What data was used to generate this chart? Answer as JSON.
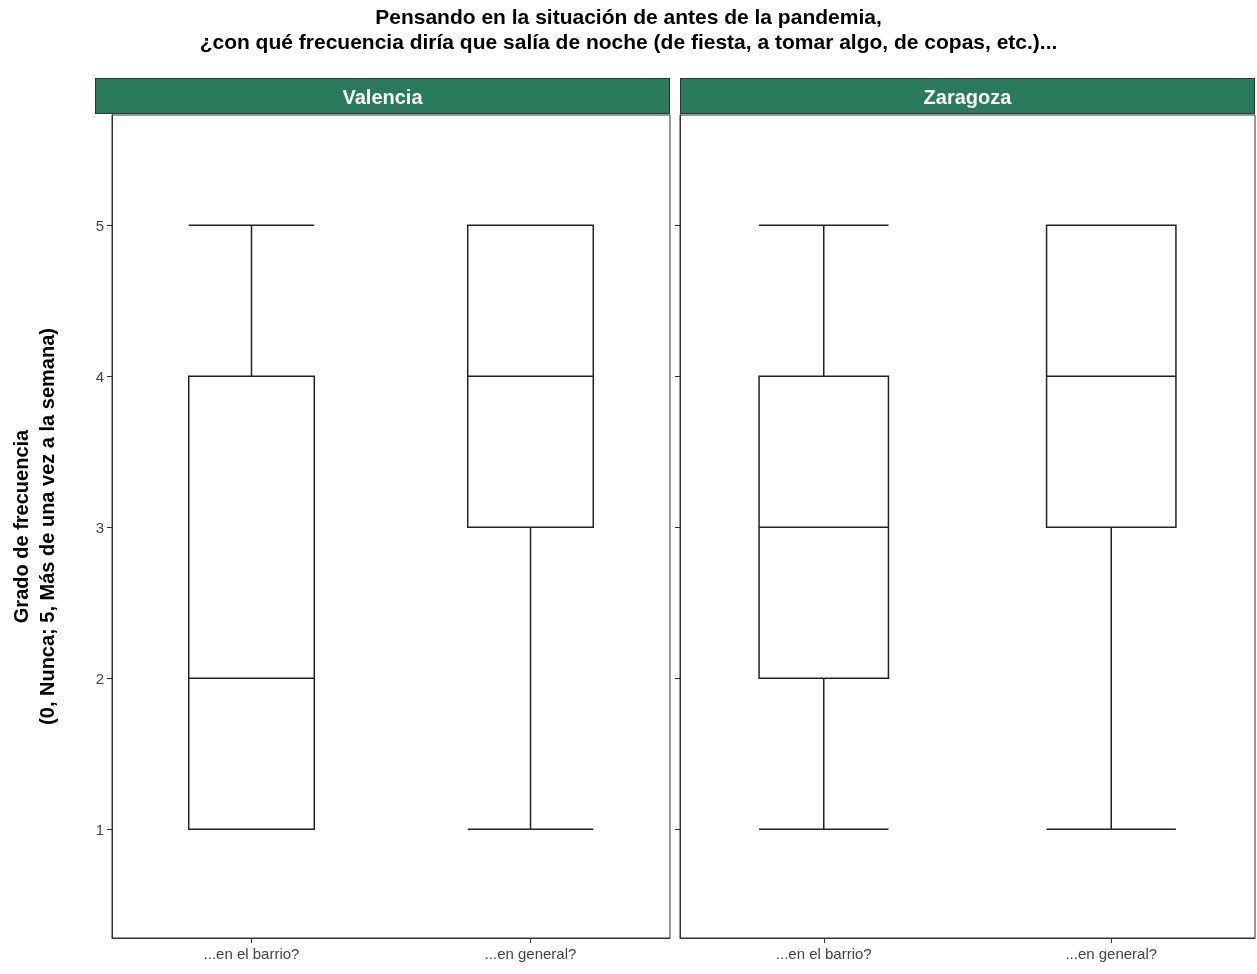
{
  "chart_data": [
    {
      "type": "box",
      "title": "Pensando en la situación de antes de la pandemia,\n¿con qué frecuencia diría que salía de noche (de fiesta, a tomar algo, de copas, etc.)...",
      "subtitle": "Valencia",
      "ylabel": "Grado de frecuencia\n(0, Nunca; 5, Más de una vez a la semana)",
      "categories": [
        "...en el barrio?",
        "...en general?"
      ],
      "boxes": [
        {
          "low": 1,
          "q1": 1,
          "median": 2,
          "q3": 4,
          "high": 5
        },
        {
          "low": 1,
          "q1": 3,
          "median": 4,
          "q3": 5,
          "high": 5
        }
      ],
      "ylim": [
        0.28,
        5.73
      ],
      "yticks": [
        1,
        2,
        3,
        4,
        5
      ]
    },
    {
      "type": "box",
      "subtitle": "Zaragoza",
      "categories": [
        "...en el barrio?",
        "...en general?"
      ],
      "boxes": [
        {
          "low": 1,
          "q1": 2,
          "median": 3,
          "q3": 4,
          "high": 5
        },
        {
          "low": 1,
          "q1": 3,
          "median": 4,
          "q3": 5,
          "high": 5
        }
      ],
      "ylim": [
        0.28,
        5.73
      ],
      "yticks": [
        1,
        2,
        3,
        4,
        5
      ],
      "tick_labels": "x"
    }
  ]
}
